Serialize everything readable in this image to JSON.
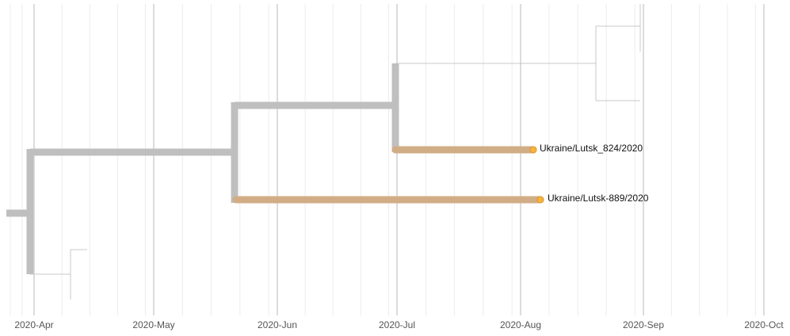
{
  "axis": {
    "ticks": [
      "2020-Apr",
      "2020-May",
      "2020-Jun",
      "2020-Jul",
      "2020-Aug",
      "2020-Sep",
      "2020-Oct"
    ]
  },
  "tips": [
    {
      "label": "Ukraine/Lutsk_824/2020"
    },
    {
      "label": "Ukraine/Lutsk-889/2020"
    }
  ]
}
